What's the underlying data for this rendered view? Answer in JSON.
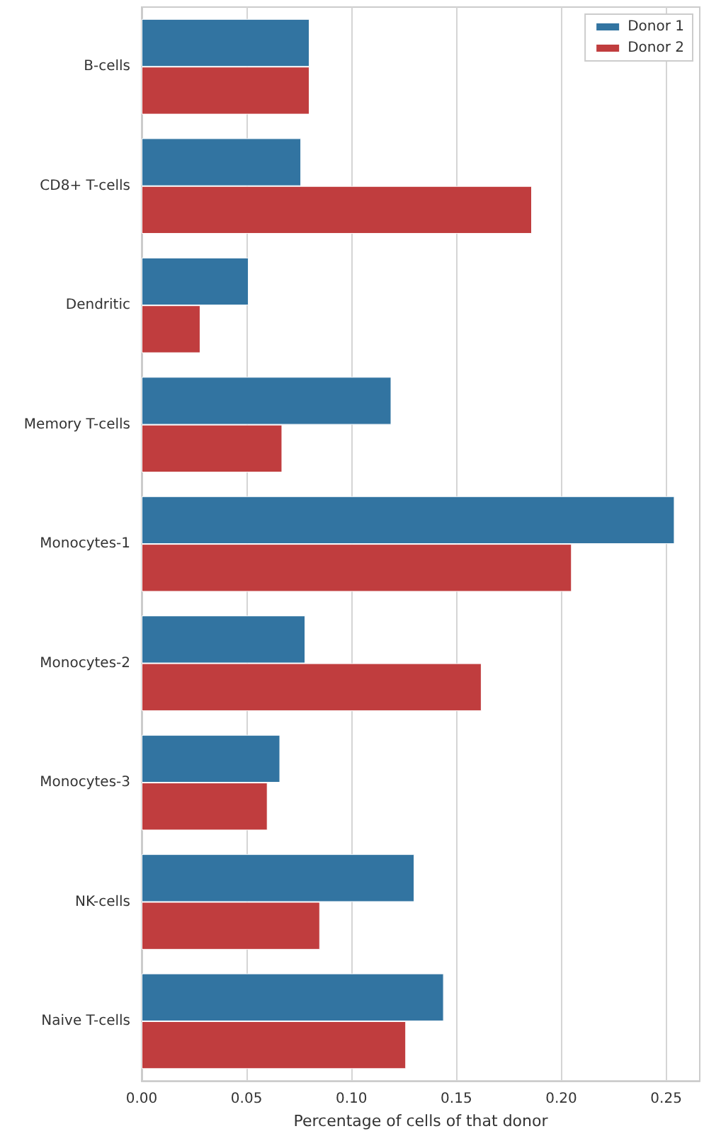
{
  "chart_data": {
    "type": "bar",
    "orientation": "horizontal",
    "xlabel": "Percentage of cells of that donor",
    "categories": [
      "B-cells",
      "CD8+ T-cells",
      "Dendritic",
      "Memory T-cells",
      "Monocytes-1",
      "Monocytes-2",
      "Monocytes-3",
      "NK-cells",
      "Naive T-cells"
    ],
    "series": [
      {
        "name": "Donor 1",
        "color": "#3274a1",
        "values": [
          0.08,
          0.076,
          0.051,
          0.119,
          0.254,
          0.078,
          0.066,
          0.13,
          0.144
        ]
      },
      {
        "name": "Donor 2",
        "color": "#c03d3e",
        "values": [
          0.08,
          0.186,
          0.028,
          0.067,
          0.205,
          0.162,
          0.06,
          0.085,
          0.126
        ]
      }
    ],
    "xlim": [
      0,
      0.266
    ],
    "xticks": [
      {
        "value": 0,
        "label": "0.00"
      },
      {
        "value": 0.05,
        "label": "0.05"
      },
      {
        "value": 0.1,
        "label": "0.10"
      },
      {
        "value": 0.15,
        "label": "0.15"
      },
      {
        "value": 0.2,
        "label": "0.20"
      },
      {
        "value": 0.25,
        "label": "0.25"
      }
    ],
    "grid": "x",
    "legend": "top right"
  }
}
